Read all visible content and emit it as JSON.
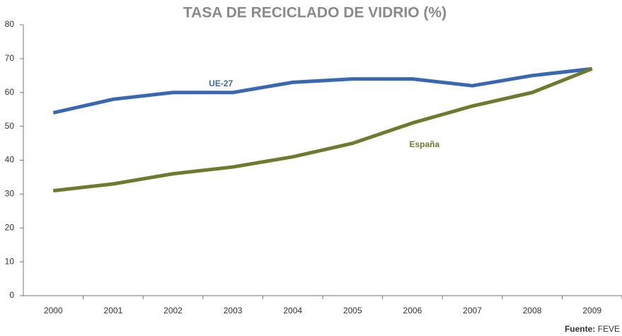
{
  "chart_data": {
    "type": "line",
    "title": "TASA DE RECICLADO DE VIDRIO (%)",
    "categories": [
      "2000",
      "2001",
      "2002",
      "2003",
      "2004",
      "2005",
      "2006",
      "2007",
      "2008",
      "2009"
    ],
    "series": [
      {
        "name": "UE-27",
        "color": "#3a68b0",
        "values": [
          54,
          58,
          60,
          60,
          63,
          64,
          64,
          62,
          65,
          67
        ]
      },
      {
        "name": "España",
        "color": "#707a2e",
        "values": [
          31,
          33,
          36,
          38,
          41,
          45,
          51,
          56,
          60,
          67
        ]
      }
    ],
    "ylim": [
      0,
      80
    ],
    "yticks": [
      0,
      10,
      20,
      30,
      40,
      50,
      60,
      70,
      80
    ],
    "grid": false,
    "source_label": "Fuente:",
    "source": "FEVE"
  }
}
